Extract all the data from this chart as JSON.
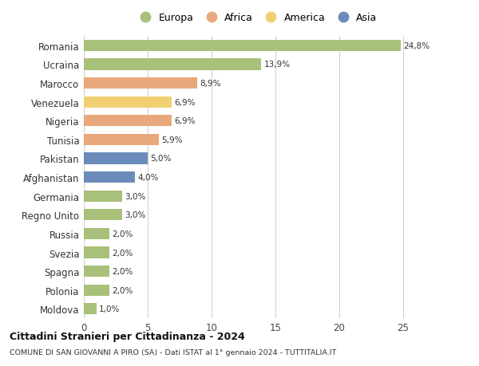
{
  "countries": [
    "Romania",
    "Ucraina",
    "Marocco",
    "Venezuela",
    "Nigeria",
    "Tunisia",
    "Pakistan",
    "Afghanistan",
    "Germania",
    "Regno Unito",
    "Russia",
    "Svezia",
    "Spagna",
    "Polonia",
    "Moldova"
  ],
  "values": [
    24.8,
    13.9,
    8.9,
    6.9,
    6.9,
    5.9,
    5.0,
    4.0,
    3.0,
    3.0,
    2.0,
    2.0,
    2.0,
    2.0,
    1.0
  ],
  "labels": [
    "24,8%",
    "13,9%",
    "8,9%",
    "6,9%",
    "6,9%",
    "5,9%",
    "5,0%",
    "4,0%",
    "3,0%",
    "3,0%",
    "2,0%",
    "2,0%",
    "2,0%",
    "2,0%",
    "1,0%"
  ],
  "continents": [
    "Europa",
    "Europa",
    "Africa",
    "America",
    "Africa",
    "Africa",
    "Asia",
    "Asia",
    "Europa",
    "Europa",
    "Europa",
    "Europa",
    "Europa",
    "Europa",
    "Europa"
  ],
  "colors": {
    "Europa": "#a8c07a",
    "Africa": "#e8a87c",
    "America": "#f0d070",
    "Asia": "#6b8cba"
  },
  "legend_order": [
    "Europa",
    "Africa",
    "America",
    "Asia"
  ],
  "title1": "Cittadini Stranieri per Cittadinanza - 2024",
  "title2": "COMUNE DI SAN GIOVANNI A PIRO (SA) - Dati ISTAT al 1° gennaio 2024 - TUTTITALIA.IT",
  "xlim": [
    0,
    27
  ],
  "xticks": [
    0,
    5,
    10,
    15,
    20,
    25
  ],
  "background_color": "#ffffff",
  "grid_color": "#d0d0d0"
}
